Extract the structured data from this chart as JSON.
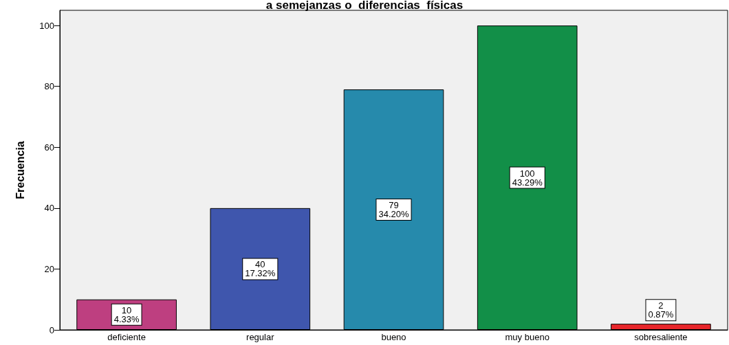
{
  "chart_data": {
    "type": "bar",
    "title": "a semejanzas o  diferencias  físicas",
    "ylabel": "Frecuencia",
    "categories": [
      "deficiente",
      "regular",
      "bueno",
      "muy bueno",
      "sobresaliente"
    ],
    "values": [
      10,
      40,
      79,
      100,
      2
    ],
    "colors": [
      "#be3f80",
      "#3f56ad",
      "#268aac",
      "#128f48",
      "#e8262b"
    ],
    "value_labels": [
      "10\n4.33%",
      "40\n17.32%",
      "79\n34.20%",
      "100\n43.29%",
      "2\n0.87%"
    ],
    "ylim": [
      0,
      105
    ],
    "yticks": [
      0,
      20,
      40,
      60,
      80,
      100
    ],
    "grid": false
  }
}
